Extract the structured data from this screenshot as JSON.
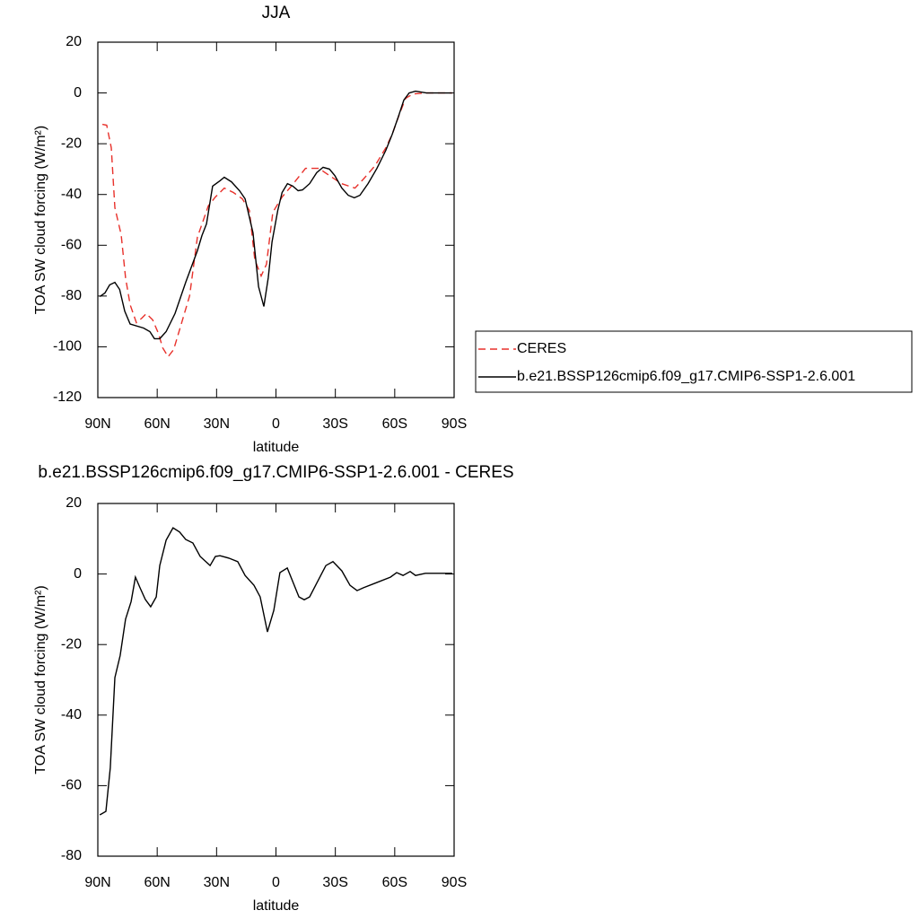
{
  "chart_data": [
    {
      "type": "line",
      "title": "JJA",
      "xlabel": "latitude",
      "ylabel": "TOA SW cloud forcing (W/m²)",
      "xlim": [
        90,
        -90
      ],
      "ylim": [
        -120,
        20
      ],
      "xticks": [
        {
          "value": 90,
          "label": "90N"
        },
        {
          "value": 60,
          "label": "60N"
        },
        {
          "value": 30,
          "label": "30N"
        },
        0,
        {
          "value": -30,
          "label": "30S"
        },
        {
          "value": -60,
          "label": "60S"
        },
        {
          "value": -90,
          "label": "90S"
        }
      ],
      "yticks": [
        -120,
        -100,
        -80,
        -60,
        -40,
        -20,
        0,
        20
      ],
      "legend": "right",
      "series": [
        {
          "name": "CERES",
          "color": "#e8312b",
          "dash": "dashed",
          "x": [
            87.7,
            85.5,
            83.2,
            81.4,
            78.2,
            76,
            73.7,
            70.5,
            67.8,
            65.5,
            62.3,
            59.4,
            57.2,
            54.5,
            51.7,
            48.3,
            43.6,
            39.7,
            34.2,
            30.6,
            26.1,
            21.5,
            17,
            13.4,
            10.7,
            7.5,
            4.8,
            1.6,
            -3.1,
            -8.1,
            -14.9,
            -21.7,
            -26.4,
            -33.1,
            -39.9,
            -44.2,
            -50.1,
            -55.5,
            -58.7,
            -62.3,
            -65.5,
            -69.2,
            -76,
            -89
          ],
          "values": [
            -12.4,
            -12.7,
            -21.6,
            -45.2,
            -55.8,
            -72.8,
            -83.4,
            -90.5,
            -88.7,
            -86.9,
            -89.4,
            -94.7,
            -100.4,
            -103.9,
            -101.1,
            -92.2,
            -79.9,
            -56.9,
            -44.5,
            -41,
            -37.5,
            -39.2,
            -41.7,
            -46.3,
            -65.7,
            -72.1,
            -67.5,
            -47,
            -41,
            -36.4,
            -29.7,
            -29.7,
            -32.2,
            -35.7,
            -37.5,
            -33.9,
            -28.6,
            -21.6,
            -16.3,
            -8.5,
            -2.1,
            -0.4,
            0,
            0
          ]
        },
        {
          "name": "b.e21.BSSP126cmip6.f09_g17.CMIP6-SSP1-2.6.001",
          "color": "#000000",
          "dash": "solid",
          "x": [
            89,
            86.4,
            84,
            81.4,
            79,
            76.4,
            73.7,
            66.9,
            63.7,
            61.4,
            58.7,
            55.5,
            51,
            45.6,
            39.7,
            37.4,
            35.1,
            32,
            28.3,
            26.1,
            22.5,
            18.4,
            15.6,
            11.6,
            8.8,
            6.1,
            3.9,
            2,
            -0.9,
            -3.1,
            -5.8,
            -8.5,
            -11.2,
            -13.4,
            -17,
            -20.6,
            -23.8,
            -27,
            -29.7,
            -33.3,
            -36.5,
            -39.6,
            -42.4,
            -46.5,
            -51,
            -55.5,
            -58.7,
            -61.9,
            -64.6,
            -67.3,
            -70.5,
            -76,
            -89
          ],
          "values": [
            -80.2,
            -78.8,
            -75.6,
            -74.6,
            -77.4,
            -86,
            -91,
            -92.6,
            -94,
            -96.8,
            -96.8,
            -94,
            -86.9,
            -74.6,
            -62.2,
            -56.2,
            -51.6,
            -36.7,
            -34.6,
            -33.2,
            -35,
            -38.5,
            -41.7,
            -55.1,
            -76.3,
            -84.1,
            -72.8,
            -58.7,
            -46.3,
            -39.2,
            -35.7,
            -36.7,
            -38.5,
            -38.2,
            -35.7,
            -31.4,
            -29.3,
            -30,
            -32.5,
            -37.5,
            -40.3,
            -41.3,
            -40.3,
            -35.7,
            -29.7,
            -22.6,
            -16.3,
            -9.2,
            -2.8,
            0,
            0.7,
            0,
            0
          ]
        }
      ]
    },
    {
      "type": "line",
      "title": "b.e21.BSSP126cmip6.f09_g17.CMIP6-SSP1-2.6.001 - CERES",
      "xlabel": "latitude",
      "ylabel": "TOA SW cloud forcing (W/m²)",
      "xlim": [
        90,
        -90
      ],
      "ylim": [
        -80,
        20
      ],
      "xticks": [
        {
          "value": 90,
          "label": "90N"
        },
        {
          "value": 60,
          "label": "60N"
        },
        {
          "value": 30,
          "label": "30N"
        },
        0,
        {
          "value": -30,
          "label": "30S"
        },
        {
          "value": -60,
          "label": "60S"
        },
        {
          "value": -90,
          "label": "90S"
        }
      ],
      "yticks": [
        -80,
        -60,
        -40,
        -20,
        0,
        20
      ],
      "series": [
        {
          "color": "#000000",
          "dash": "solid",
          "x": [
            89,
            85.9,
            83.7,
            81.4,
            78.7,
            76,
            73.2,
            71,
            68.7,
            66,
            63.3,
            60.5,
            58.7,
            55.5,
            52,
            48.7,
            45.6,
            42,
            38.3,
            33.3,
            30.6,
            28.3,
            23.8,
            19.3,
            15.6,
            11.1,
            8,
            4.3,
            1.1,
            -2,
            -5.7,
            -11.6,
            -14.3,
            -17,
            -20.6,
            -25.2,
            -28.8,
            -33.3,
            -37.4,
            -41,
            -44.2,
            -50.1,
            -57.8,
            -61,
            -64.2,
            -67.8,
            -70.5,
            -75.5,
            -80.5,
            -89
          ],
          "values": [
            -68.3,
            -67.3,
            -54.9,
            -29.4,
            -23.1,
            -12.8,
            -7.8,
            -0.9,
            -3.9,
            -7.2,
            -9.3,
            -6.5,
            2.4,
            9.6,
            13.1,
            11.9,
            9.8,
            8.8,
            5,
            2.4,
            5,
            5.2,
            4.5,
            3.5,
            -0.4,
            -3.2,
            -6.5,
            -16.4,
            -10.3,
            0.4,
            1.7,
            -6.5,
            -7.3,
            -6.5,
            -2.6,
            2.4,
            3.5,
            0.9,
            -3.2,
            -4.7,
            -3.9,
            -2.6,
            -0.9,
            0.4,
            -0.4,
            0.7,
            -0.4,
            0.2,
            0.2,
            0.2
          ]
        }
      ]
    }
  ]
}
